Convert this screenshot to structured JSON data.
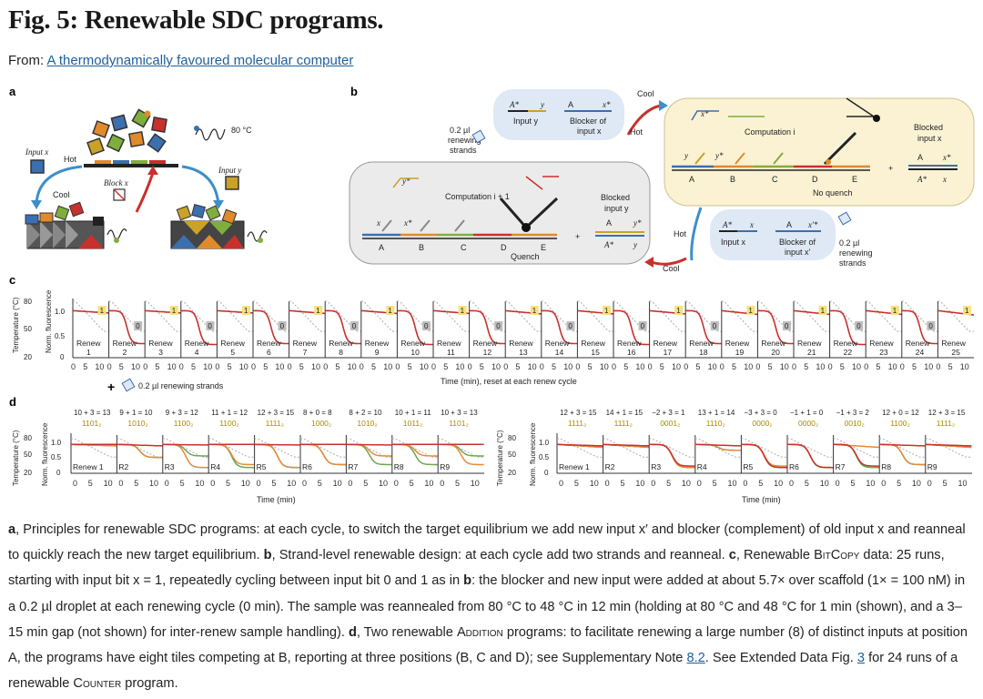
{
  "page": {
    "title": "Fig. 5: Renewable SDC programs.",
    "from_label": "From:",
    "from_link": "A thermodynamically favoured molecular computer"
  },
  "panel_a": {
    "label": "a",
    "temp_label": "80 °C",
    "input_x": "Input x",
    "hot": "Hot",
    "cool": "Cool",
    "block_x": "Block x",
    "input_y": "Input y",
    "tile_colors": [
      "#e08a2c",
      "#3b6fb0",
      "#7fae3c",
      "#c9302c",
      "#c9a227"
    ]
  },
  "panel_b": {
    "label": "b",
    "cool": "Cool",
    "hot": "Hot",
    "renewing1": [
      "0.2 µl",
      "renewing",
      "strands"
    ],
    "renewing2": [
      "0.2 µl",
      "renewing",
      "strands"
    ],
    "top_bubble": {
      "input": "Input y",
      "blocker1": "Blocker of",
      "blocker2": "input x",
      "a1": "A*",
      "a2": "y",
      "a3": "A",
      "a4": "x*"
    },
    "bottom_bubble": {
      "input": "Input x",
      "blocker1": "Blocker of",
      "blocker2": "input x'",
      "a1": "A*",
      "a2": "x",
      "a3": "A",
      "a4": "x'*"
    },
    "left_box": {
      "comp": "Computation i + 1",
      "quench": "Quench",
      "blocked1": "Blocked",
      "blocked2": "input y",
      "y_star": "y*",
      "x": "x",
      "x_star": "x*",
      "A": "A",
      "Ast": "A*",
      "y": "y",
      "Ay": "y*",
      "letters": [
        "A",
        "B",
        "C",
        "D",
        "E"
      ]
    },
    "right_box": {
      "comp": "Computation i",
      "noquench": "No quench",
      "blocked1": "Blocked",
      "blocked2": "input x",
      "x_star": "x*",
      "y": "y",
      "y_star": "y*",
      "A": "A",
      "Ast": "A*",
      "x": "x",
      "letters": [
        "A",
        "B",
        "C",
        "D",
        "E"
      ]
    }
  },
  "panel_c": {
    "label": "c",
    "y_left_label": "Temperature (°C)",
    "y_right_label": "Norm. fluorescence",
    "temp_ticks": [
      "80",
      "50",
      "20"
    ],
    "fluor_ticks": [
      "1.0",
      "0.5",
      "0"
    ],
    "x_label": "Time (min), reset at each renew cycle",
    "plus_text": "0.2 µl renewing strands",
    "renew_word": "Renew",
    "x_ticks": [
      "0",
      "5",
      "10"
    ]
  },
  "panel_d": {
    "label": "d",
    "y_left_label": "Temperature (°C)",
    "y_right_label": "Norm. fluorescence",
    "temp_ticks": [
      "80",
      "50",
      "20"
    ],
    "fluor_ticks": [
      "1.0",
      "0.5",
      "0"
    ],
    "x_label": "Time (min)",
    "x_ticks": [
      "0",
      "5",
      "10"
    ],
    "left_eqs": [
      "10 + 3 = 13",
      "9 + 1 = 10",
      "9 + 3 = 12",
      "11 + 1 = 12",
      "12 + 3 = 15",
      "8 + 0 = 8",
      "8 + 2 = 10",
      "10 + 1 = 11",
      "10 + 3 = 13"
    ],
    "left_bins": [
      "1101₂",
      "1010₂",
      "1100₂",
      "1100₂",
      "1111₂",
      "1000₂",
      "1010₂",
      "1011₂",
      "1101₂"
    ],
    "right_eqs": [
      "12 + 3 = 15",
      "14 + 1 = 15",
      "−2 + 3 = 1",
      "13 + 1 = 14",
      "−3 + 3 = 0",
      "−1 + 1 = 0",
      "−1 + 3 = 2",
      "12 + 0 = 12",
      "12 + 3 = 15"
    ],
    "right_bins": [
      "1111₂",
      "1111₂",
      "0001₂",
      "1110₂",
      "0000₂",
      "0000₂",
      "0010₂",
      "1100₂",
      "1111₂"
    ],
    "panel_names": [
      "Renew 1",
      "R2",
      "R3",
      "R4",
      "R5",
      "R6",
      "R7",
      "R8",
      "R9"
    ]
  },
  "chart_data": [
    {
      "type": "line",
      "title": "",
      "xlabel": "Time (min), reset at each renew cycle",
      "ylabel": "Norm. fluorescence",
      "secondary_ylabel": "Temperature (°C)",
      "ylim": [
        0,
        1.2
      ],
      "secondary_ylim": [
        20,
        80
      ],
      "xlim": [
        0,
        15
      ],
      "grid": false,
      "panels": [
        "1",
        "2",
        "3",
        "4",
        "5",
        "6",
        "7",
        "8",
        "9",
        "10",
        "11",
        "12",
        "13",
        "14",
        "15",
        "16",
        "17",
        "18",
        "19",
        "20",
        "21",
        "22",
        "23",
        "24",
        "25"
      ],
      "bit_labels": [
        "1",
        "0",
        "1",
        "0",
        "1",
        "0",
        "1",
        "0",
        "1",
        "0",
        "1",
        "0",
        "1",
        "0",
        "1",
        "0",
        "1",
        "0",
        "1",
        "0",
        "1",
        "0",
        "1",
        "0",
        "1"
      ],
      "final_fluorescence": [
        0.95,
        0.3,
        0.95,
        0.28,
        0.95,
        0.3,
        0.94,
        0.3,
        0.94,
        0.28,
        0.94,
        0.3,
        0.93,
        0.3,
        0.93,
        0.28,
        0.93,
        0.3,
        0.92,
        0.3,
        0.92,
        0.28,
        0.92,
        0.3,
        0.91
      ]
    },
    {
      "type": "line",
      "title": "",
      "xlabel": "Time (min)",
      "ylabel": "Norm. fluorescence",
      "secondary_ylabel": "Temperature (°C)",
      "ylim": [
        0,
        1.2
      ],
      "secondary_ylim": [
        20,
        80
      ],
      "xlim": [
        0,
        15
      ],
      "panels": [
        "Renew 1",
        "R2",
        "R3",
        "R4",
        "R5",
        "R6",
        "R7",
        "R8",
        "R9"
      ],
      "series_colors": [
        "#c9302c",
        "#e8893a",
        "#6aa84f"
      ],
      "final_red": [
        1.0,
        0.95,
        0.98,
        1.0,
        0.98,
        1.0,
        0.98,
        1.0,
        1.0
      ],
      "final_orange": [
        0.95,
        0.55,
        0.2,
        0.3,
        0.2,
        0.3,
        0.6,
        0.6,
        0.3
      ],
      "final_green": [
        0.95,
        0.55,
        0.6,
        0.2,
        0.2,
        0.3,
        0.3,
        0.3,
        0.6
      ]
    },
    {
      "type": "line",
      "title": "",
      "xlabel": "Time (min)",
      "ylabel": "Norm. fluorescence",
      "secondary_ylabel": "Temperature (°C)",
      "ylim": [
        0,
        1.2
      ],
      "secondary_ylim": [
        20,
        80
      ],
      "xlim": [
        0,
        15
      ],
      "panels": [
        "Renew 1",
        "R2",
        "R3",
        "R4",
        "R5",
        "R6",
        "R7",
        "R8",
        "R9"
      ],
      "series_colors": [
        "#c9302c",
        "#e8893a",
        "#6aa84f",
        "#7a1c17"
      ],
      "final_red": [
        0.95,
        0.95,
        0.25,
        0.95,
        0.2,
        0.2,
        0.25,
        0.95,
        0.95
      ],
      "final_orange": [
        0.9,
        0.9,
        0.2,
        0.8,
        0.25,
        0.2,
        0.9,
        0.3,
        0.9
      ],
      "final_green": [
        0.9,
        0.9,
        0.2,
        0.8,
        0.2,
        0.2,
        0.2,
        0.3,
        0.9
      ]
    }
  ],
  "caption": {
    "a_label": "a",
    "a_text": ", Principles for renewable SDC programs: at each cycle, to switch the target equilibrium we add new input x′ and blocker (complement) of old input x and reanneal to quickly reach the new target equilibrium. ",
    "b_label": "b",
    "b_text": ", Strand-level renewable design: at each cycle add two strands and reanneal. ",
    "c_label": "c",
    "c_text1": ", Renewable ",
    "c_bitcopy": "BitCopy",
    "c_text2": " data: 25 runs, starting with input bit x = 1, repeatedly cycling between input bit 0 and 1 as in ",
    "c_b": "b",
    "c_text3": ": the blocker and new input were added at about 5.7× over scaffold (1× = 100 nM) in a 0.2 µl droplet at each renewing cycle (0 min). The sample was reannealed from 80 °C to 48 °C in 12 min (holding at 80 °C and 48 °C for 1 min (shown), and a 3–15 min gap (not shown) for inter-renew sample handling). ",
    "d_label": "d",
    "d_text1": ", Two renewable ",
    "d_addition": "Addition",
    "d_text2": " programs: to facilitate renewing a large number (8) of distinct inputs at position A, the programs have eight tiles competing at B, reporting at three positions (B, C and D); see Supplementary Note ",
    "d_note": "8.2",
    "d_text3": ". See Extended Data Fig. ",
    "d_fig": "3",
    "d_text4": " for 24 runs of a renewable ",
    "d_counter": "Counter",
    "d_text5": " program."
  }
}
